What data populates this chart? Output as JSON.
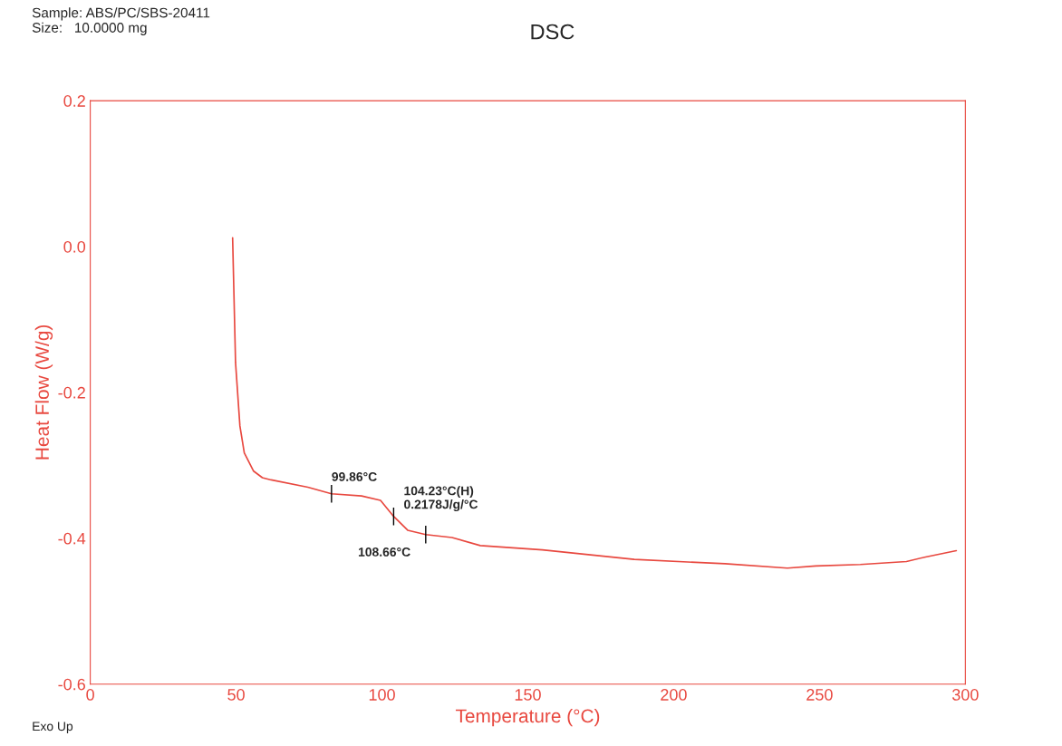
{
  "chart_data": {
    "type": "line",
    "title": "DSC",
    "xlabel": "Temperature (°C)",
    "ylabel": "Heat Flow (W/g)",
    "x": [
      48.8,
      49.8,
      51.3,
      52.8,
      56,
      59,
      62,
      74.6,
      82.7,
      93,
      99.5,
      104,
      108.8,
      115,
      124,
      133.7,
      155,
      186.5,
      217.6,
      239,
      248.7,
      264,
      279.8,
      286,
      296.9
    ],
    "series": [
      {
        "color": "#e8483f",
        "values": [
          0.012,
          -0.159,
          -0.246,
          -0.283,
          -0.308,
          -0.317,
          -0.32,
          -0.33,
          -0.339,
          -0.342,
          -0.348,
          -0.37,
          -0.389,
          -0.395,
          -0.399,
          -0.41,
          -0.416,
          -0.429,
          -0.435,
          -0.441,
          -0.438,
          -0.436,
          -0.432,
          -0.426,
          -0.417
        ]
      }
    ],
    "xlim": [
      0,
      300
    ],
    "xticks": [
      0,
      50,
      100,
      150,
      200,
      250,
      300
    ],
    "ylim": [
      -0.6,
      0.2
    ],
    "yticks": [
      {
        "value": -0.6,
        "label": "-0.6"
      },
      {
        "value": -0.4,
        "label": "-0.4"
      },
      {
        "value": -0.2,
        "label": "-0.2"
      },
      {
        "value": 0,
        "label": "0.0"
      },
      {
        "value": 0.2,
        "label": "0.2"
      }
    ],
    "grid": false,
    "legend": false,
    "annotations": [
      {
        "text": "99.86°C",
        "x": 82.7,
        "y": -0.339
      },
      {
        "text": "104.23°C(H)\n0.2178J/g/°C",
        "x": 104,
        "y": -0.37
      },
      {
        "text": "108.66°C",
        "x": 115,
        "y": -0.395
      },
      "Sample: ABS/PC/SBS-20411\nSize:   10.0000 mg",
      "Exo Up"
    ]
  }
}
